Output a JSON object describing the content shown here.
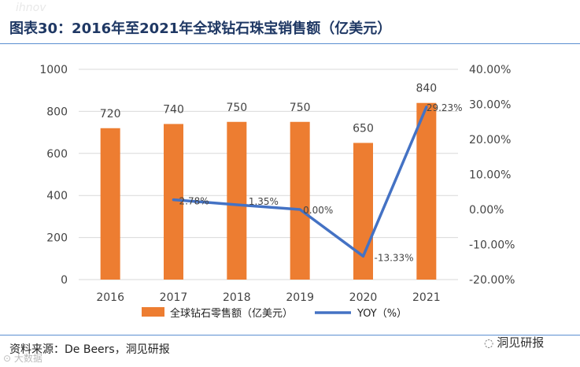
{
  "header": {
    "title": "图表30：2016年至2021年全球钻石珠宝销售额（亿美元）",
    "faint_mark": "ihnov"
  },
  "footer": {
    "source": "资料来源：De Beers，洞见研报",
    "watermark": "洞见研报",
    "watermark_icon": "wechat-icon",
    "corner_mark": "⊙ 大数据"
  },
  "colors": {
    "bar": "#ed7d31",
    "line": "#4472c4",
    "grid": "#d9d9d9",
    "title": "#1f3864",
    "rule": "#5b8fd1"
  },
  "chart_data": {
    "type": "bar",
    "title": "图表30：2016年至2021年全球钻石珠宝销售额（亿美元）",
    "categories": [
      "2016",
      "2017",
      "2018",
      "2019",
      "2020",
      "2021"
    ],
    "series": [
      {
        "name": "全球钻石零售额（亿美元）",
        "type": "bar",
        "axis": "left",
        "values": [
          720,
          740,
          750,
          750,
          650,
          840
        ],
        "labels": [
          "720",
          "740",
          "750",
          "750",
          "650",
          "840"
        ]
      },
      {
        "name": "YOY（%）",
        "type": "line",
        "axis": "right",
        "values": [
          null,
          2.78,
          1.35,
          0.0,
          -13.33,
          29.23
        ],
        "labels": [
          "",
          "2.78%",
          "1.35%",
          "0.00%",
          "-13.33%",
          "29.23%"
        ]
      }
    ],
    "y_left": {
      "ylim": [
        0,
        1000
      ],
      "ticks": [
        0,
        200,
        400,
        600,
        800,
        1000
      ],
      "tick_labels": [
        "0",
        "200",
        "400",
        "600",
        "800",
        "1000"
      ]
    },
    "y_right": {
      "ylim": [
        -20,
        40
      ],
      "ticks": [
        -20,
        -10,
        0,
        10,
        20,
        30,
        40
      ],
      "tick_labels": [
        "-20.00%",
        "-10.00%",
        "0.00%",
        "10.00%",
        "20.00%",
        "30.00%",
        "40.00%"
      ]
    },
    "xlabel": "",
    "ylabel": "",
    "grid": true,
    "legend_position": "bottom"
  }
}
